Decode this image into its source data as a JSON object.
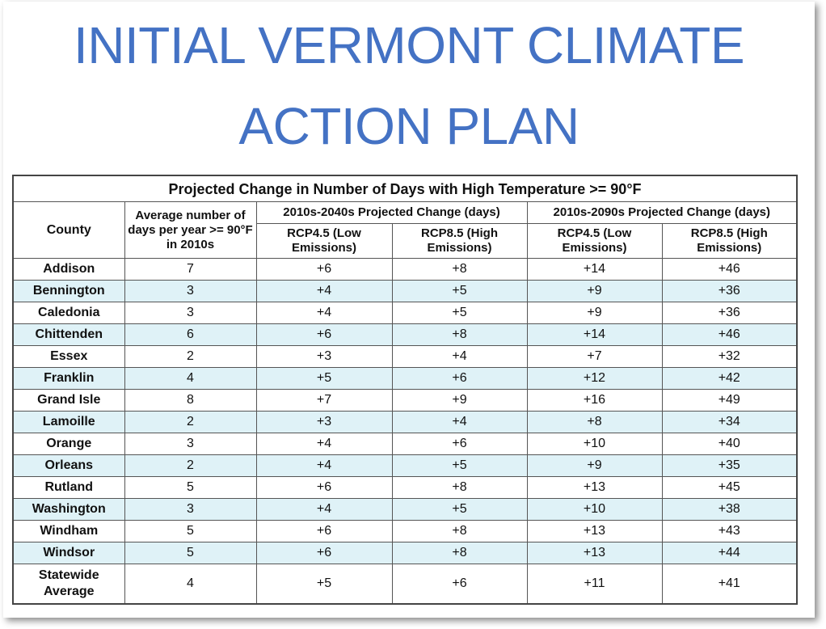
{
  "title": [
    "INITIAL VERMONT CLIMATE",
    "ACTION PLAN"
  ],
  "table": {
    "caption": "Projected Change in Number of Days with High Temperature >= 90°F",
    "header": {
      "county": "County",
      "average": "Average number of days per year >= 90°F in 2010s",
      "groups": [
        "2010s-2040s Projected Change (days)",
        "2010s-2090s Projected Change (days)"
      ],
      "subheads": [
        "RCP4.5 (Low Emissions)",
        "RCP8.5 (High Emissions)",
        "RCP4.5 (Low Emissions)",
        "RCP8.5 (High Emissions)"
      ]
    },
    "rows": [
      [
        "Addison",
        "7",
        "+6",
        "+8",
        "+14",
        "+46"
      ],
      [
        "Bennington",
        "3",
        "+4",
        "+5",
        "+9",
        "+36"
      ],
      [
        "Caledonia",
        "3",
        "+4",
        "+5",
        "+9",
        "+36"
      ],
      [
        "Chittenden",
        "6",
        "+6",
        "+8",
        "+14",
        "+46"
      ],
      [
        "Essex",
        "2",
        "+3",
        "+4",
        "+7",
        "+32"
      ],
      [
        "Franklin",
        "4",
        "+5",
        "+6",
        "+12",
        "+42"
      ],
      [
        "Grand Isle",
        "8",
        "+7",
        "+9",
        "+16",
        "+49"
      ],
      [
        "Lamoille",
        "2",
        "+3",
        "+4",
        "+8",
        "+34"
      ],
      [
        "Orange",
        "3",
        "+4",
        "+6",
        "+10",
        "+40"
      ],
      [
        "Orleans",
        "2",
        "+4",
        "+5",
        "+9",
        "+35"
      ],
      [
        "Rutland",
        "5",
        "+6",
        "+8",
        "+13",
        "+45"
      ],
      [
        "Washington",
        "3",
        "+4",
        "+5",
        "+10",
        "+38"
      ],
      [
        "Windham",
        "5",
        "+6",
        "+8",
        "+13",
        "+43"
      ],
      [
        "Windsor",
        "5",
        "+6",
        "+8",
        "+13",
        "+44"
      ],
      [
        "Statewide Average",
        "4",
        "+5",
        "+6",
        "+11",
        "+41"
      ]
    ]
  }
}
